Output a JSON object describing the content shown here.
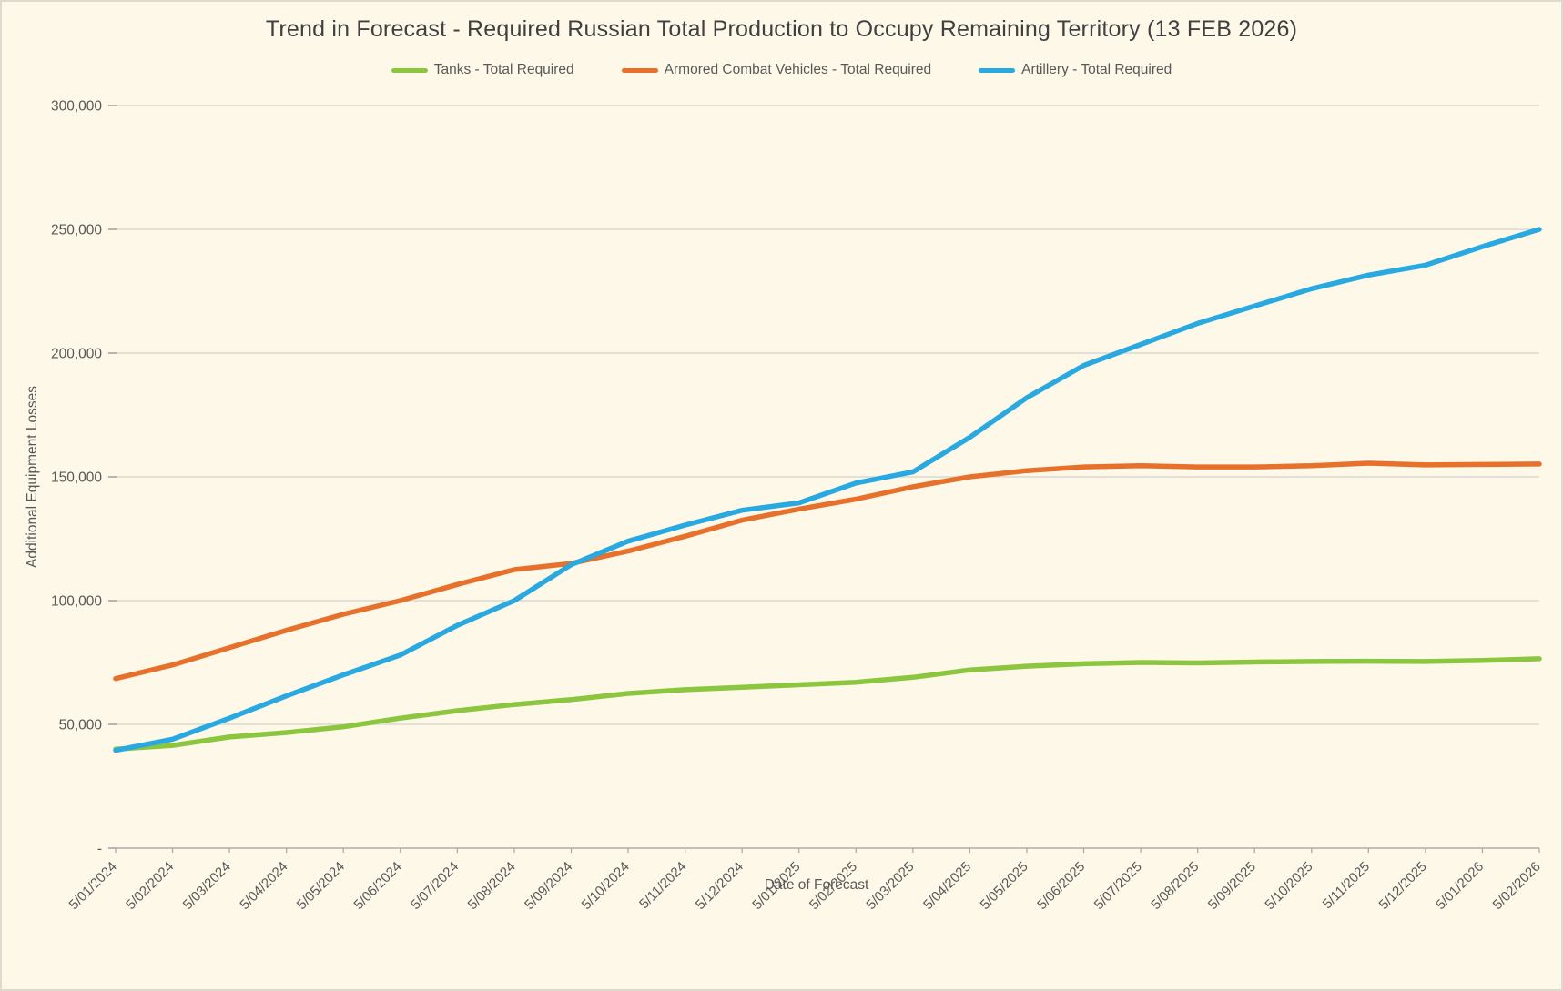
{
  "page": {
    "background_color": "#FDF8E8",
    "border_color": "#DFDACE",
    "gridline_color": "#DBD8D1",
    "axisline_color": "#C2BFB8",
    "tick_color": "#A6A6A6",
    "text_color": "#595959",
    "title_color": "#404040"
  },
  "chart_data": {
    "type": "line",
    "title": "Trend in Forecast - Required Russian Total Production to Occupy Remaining Territory (13 FEB 2026)",
    "xlabel": "Date of Forecast",
    "ylabel": "Additional Equipment Losses",
    "ylim": [
      0,
      300000
    ],
    "y_tick_step": 50000,
    "y_tick_labels": [
      "-",
      "50,000",
      "100,000",
      "150,000",
      "200,000",
      "250,000",
      "300,000"
    ],
    "grid": true,
    "legend_position": "top",
    "categories": [
      "5/01/2024",
      "5/02/2024",
      "5/03/2024",
      "5/04/2024",
      "5/05/2024",
      "5/06/2024",
      "5/07/2024",
      "5/08/2024",
      "5/09/2024",
      "5/10/2024",
      "5/11/2024",
      "5/12/2024",
      "5/01/2025",
      "5/02/2025",
      "5/03/2025",
      "5/04/2025",
      "5/05/2025",
      "5/06/2025",
      "5/07/2025",
      "5/08/2025",
      "5/09/2025",
      "5/10/2025",
      "5/11/2025",
      "5/12/2025",
      "5/01/2026",
      "5/02/2026"
    ],
    "series": [
      {
        "name": "Tanks - Total Required",
        "color": "#8CC63F",
        "values": [
          40000,
          41500,
          44900,
          46700,
          49000,
          52500,
          55500,
          58000,
          60000,
          62500,
          64000,
          65000,
          66000,
          67000,
          69000,
          72000,
          73500,
          74500,
          75000,
          74800,
          75200,
          75400,
          75500,
          75400,
          75800,
          76500
        ]
      },
      {
        "name": "Armored Combat Vehicles - Total Required",
        "color": "#E7702B",
        "values": [
          68500,
          74000,
          81000,
          88000,
          94500,
          100000,
          106500,
          112500,
          115000,
          120000,
          126000,
          132500,
          137000,
          141000,
          146000,
          150000,
          152500,
          154000,
          154500,
          154000,
          154000,
          154500,
          155500,
          154800,
          155000,
          155200
        ]
      },
      {
        "name": "Artillery - Total Required",
        "color": "#28A9E1",
        "values": [
          39500,
          44000,
          52500,
          61500,
          70000,
          78000,
          90000,
          100000,
          114500,
          124000,
          130500,
          136500,
          139500,
          147500,
          152000,
          166000,
          182000,
          195000,
          203500,
          212000,
          219000,
          226000,
          231500,
          235500,
          243000,
          250000
        ]
      }
    ]
  }
}
